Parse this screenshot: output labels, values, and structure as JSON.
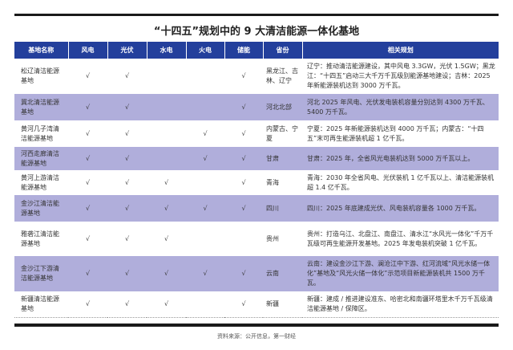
{
  "title": "“十四五”规划中的 9 大清洁能源一体化基地",
  "headers": [
    "基地名称",
    "风电",
    "光伏",
    "水电",
    "火电",
    "储能",
    "省份",
    "相关规划"
  ],
  "check": "√",
  "rows": [
    {
      "name": "松辽清洁能源基地",
      "wind": true,
      "solar": true,
      "hydro": false,
      "thermal": false,
      "storage": true,
      "province": "黑龙江、吉林、辽宁",
      "plan": "辽宁：推动清洁能源建设，其中风电 3.3GW，光伏 1.5GW；黑龙江：“十四五”启动三大千万千瓦级别能源基地建设；吉林：2025 年新能源装机达到 3000 万千瓦。"
    },
    {
      "name": "冀北清洁能源基地",
      "wind": true,
      "solar": true,
      "hydro": false,
      "thermal": false,
      "storage": true,
      "province": "河北北部",
      "plan": "河北 2025 年风电、光伏发电装机容量分别达到 4300 万千瓦、5400 万千瓦。"
    },
    {
      "name": "黄河几子湾清洁能源基地",
      "wind": true,
      "solar": true,
      "hydro": false,
      "thermal": true,
      "storage": true,
      "province": "内蒙古、宁夏",
      "plan": "宁夏：2025 年新能源装机达到 4000 万千瓦；内蒙古：“十四五”末可再生能源装机超 1 亿千瓦。"
    },
    {
      "name": "河西走廊清洁能源基地",
      "wind": true,
      "solar": true,
      "hydro": false,
      "thermal": true,
      "storage": true,
      "province": "甘肃",
      "plan": "甘肃：2025 年，全省风光电装机达到 5000 万千瓦以上。"
    },
    {
      "name": "黄河上游清洁能源基地",
      "wind": true,
      "solar": true,
      "hydro": true,
      "thermal": false,
      "storage": true,
      "province": "青海",
      "plan": "青海：2030 年全省风电、光伏装机 1 亿千瓦以上、清洁能源装机超 1.4 亿千瓦。"
    },
    {
      "name": "金沙江清洁能源基地",
      "wind": true,
      "solar": true,
      "hydro": true,
      "thermal": true,
      "storage": true,
      "province": "四川",
      "plan": "四川：2025 年底建成光伏、风电装机容量各 1000 万千瓦。"
    },
    {
      "name": "雅砻江清洁能源基地",
      "wind": true,
      "solar": true,
      "hydro": true,
      "thermal": false,
      "storage": false,
      "province": "贵州",
      "plan": "贵州：打造乌江、北盘江、南盘江、清水江“水风光一体化”千万千瓦级可再生能源开发基地。2025 年发电装机突破 1 亿千瓦。"
    },
    {
      "name": "金沙江下游清洁能源基地",
      "wind": true,
      "solar": true,
      "hydro": true,
      "thermal": true,
      "storage": true,
      "province": "云南",
      "plan": "云南：建设金沙江下游、澜沧江中下游、红河流域“风光水储一体化”基地及“风光火储一体化”示范项目新能源装机共 1500 万千瓦。"
    },
    {
      "name": "新疆清洁能源基地",
      "wind": true,
      "solar": true,
      "hydro": true,
      "thermal": false,
      "storage": true,
      "province": "新疆",
      "plan": "新疆：建成 / 推进建设准东、哈密北和南疆环塔里木千万千瓦级清洁能源基地 / 保障区。"
    }
  ],
  "source": "资料来源：公开信息，第一财经",
  "colors": {
    "header": "#233f9c",
    "stripe": "#b0aedb"
  }
}
